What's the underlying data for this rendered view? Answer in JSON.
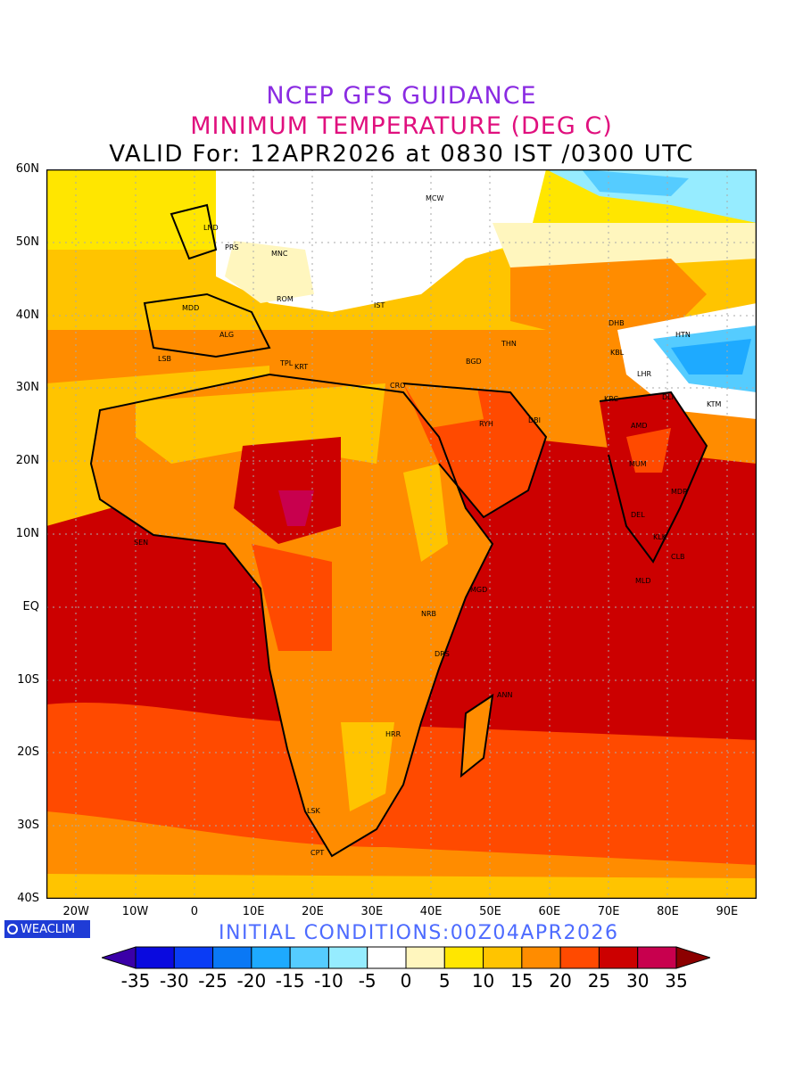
{
  "title": {
    "line1": "NCEP GFS GUIDANCE",
    "line2": "MINIMUM TEMPERATURE (DEG C)",
    "line3": "VALID For: 12APR2026 at 0830 IST /0300 UTC"
  },
  "map": {
    "lat_labels": [
      "60N",
      "50N",
      "40N",
      "30N",
      "20N",
      "10N",
      "EQ",
      "10S",
      "20S",
      "30S",
      "40S"
    ],
    "lon_labels": [
      "20W",
      "10W",
      "0",
      "10E",
      "20E",
      "30E",
      "40E",
      "50E",
      "60E",
      "70E",
      "80E",
      "90E"
    ],
    "lat_range": [
      -40,
      60
    ],
    "lon_range": [
      -25,
      95
    ],
    "gridlines": true,
    "stations": [
      "MCW",
      "LND",
      "PRS",
      "MNC",
      "MDD",
      "ROM",
      "IST",
      "ALG",
      "LSB",
      "TPL",
      "KRT",
      "CRO",
      "BGD",
      "THN",
      "DHB",
      "HTN",
      "KBL",
      "LHR",
      "KRC",
      "DLI",
      "KTM",
      "AMD",
      "MUM",
      "DEL",
      "RYH",
      "DBI",
      "SEN",
      "MGD",
      "NRB",
      "DRS",
      "ANN",
      "HRR",
      "LSK",
      "CPT",
      "MLD",
      "CLB",
      "MDR",
      "KLK"
    ]
  },
  "footer": {
    "logo": "WEACLIM",
    "initial_conditions": "INITIAL CONDITIONS:00Z04APR2026"
  },
  "colorbar": {
    "labels": [
      "-35",
      "-30",
      "-25",
      "-20",
      "-15",
      "-10",
      "-5",
      "0",
      "5",
      "10",
      "15",
      "20",
      "25",
      "30",
      "35"
    ],
    "colors": [
      "#3a00a8",
      "#0a0adf",
      "#0a3cf5",
      "#0a78f5",
      "#1eaaff",
      "#55ccff",
      "#96ecff",
      "#ffffff",
      "#fff6be",
      "#ffe600",
      "#ffc400",
      "#ff8c00",
      "#ff4a00",
      "#cc0000",
      "#c8004e",
      "#8c0000"
    ]
  }
}
